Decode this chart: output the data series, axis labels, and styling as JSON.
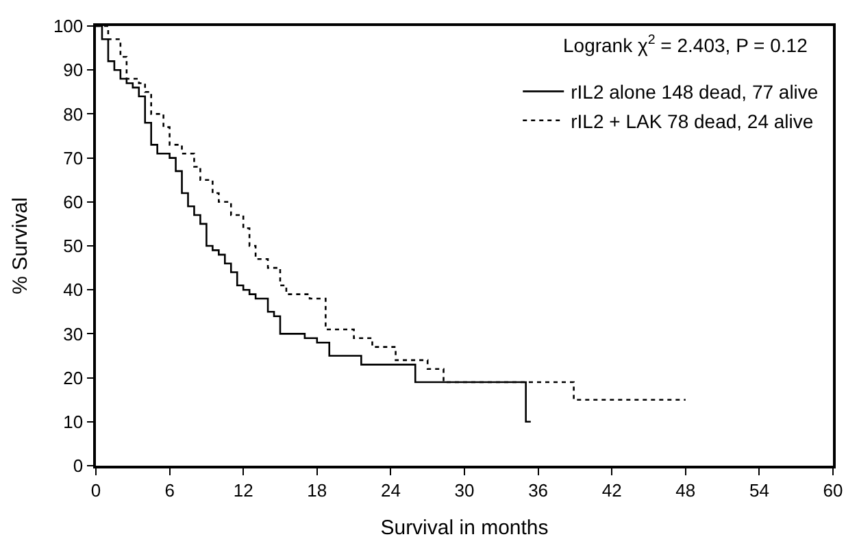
{
  "chart_data": {
    "type": "step",
    "xlabel": "Survival in months",
    "ylabel": "% Survival",
    "annotations": [
      "Logrank χ$^{2}$ = 2.403, P = 0.12"
    ],
    "xlim": [
      0,
      60
    ],
    "xticks": [
      0,
      6,
      12,
      18,
      24,
      30,
      36,
      42,
      48,
      54,
      60
    ],
    "ylim": [
      0,
      100
    ],
    "yticks": [
      0,
      10,
      20,
      30,
      40,
      50,
      60,
      70,
      80,
      90,
      100
    ],
    "legend": "top right",
    "marker": "none",
    "series": [
      {
        "name": "rIL2 alone 148 dead, 77 alive",
        "color": "#000000",
        "line_style": "solid",
        "x": [
          0,
          0.5,
          1,
          1.5,
          2,
          2.5,
          3,
          3.5,
          4,
          4.5,
          5,
          6,
          6.5,
          7,
          7.5,
          8,
          8.5,
          9,
          9.5,
          10,
          10.5,
          11,
          11.5,
          12,
          12.5,
          13,
          14,
          14.5,
          15,
          17,
          18,
          19,
          21.6,
          26,
          35,
          35.4
        ],
        "values": [
          100,
          97,
          92,
          90,
          88,
          87,
          86,
          84,
          78,
          73,
          71,
          70,
          67,
          62,
          59,
          57,
          55,
          50,
          49,
          48,
          46,
          44,
          41,
          40,
          39,
          38,
          35,
          34,
          30,
          29,
          28,
          25,
          23,
          19,
          10,
          10
        ]
      },
      {
        "name": "rIL2 + LAK 78 dead, 24 alive",
        "color": "#000000",
        "line_style": "dotted",
        "x": [
          0,
          1,
          2,
          2.5,
          3.5,
          4,
          4.5,
          5.5,
          6,
          7,
          8,
          8.5,
          9.5,
          10,
          11,
          12,
          12.5,
          13,
          14,
          15,
          15.5,
          17.4,
          18.7,
          21,
          22.5,
          24.4,
          27,
          28.3,
          38.9,
          48
        ],
        "values": [
          100,
          97,
          93,
          88,
          87,
          85,
          80,
          77,
          73,
          71,
          68,
          65,
          62,
          60,
          57,
          54,
          50,
          47,
          45,
          41,
          39,
          38,
          31,
          29,
          27,
          24,
          22,
          19,
          15,
          15
        ]
      }
    ]
  }
}
